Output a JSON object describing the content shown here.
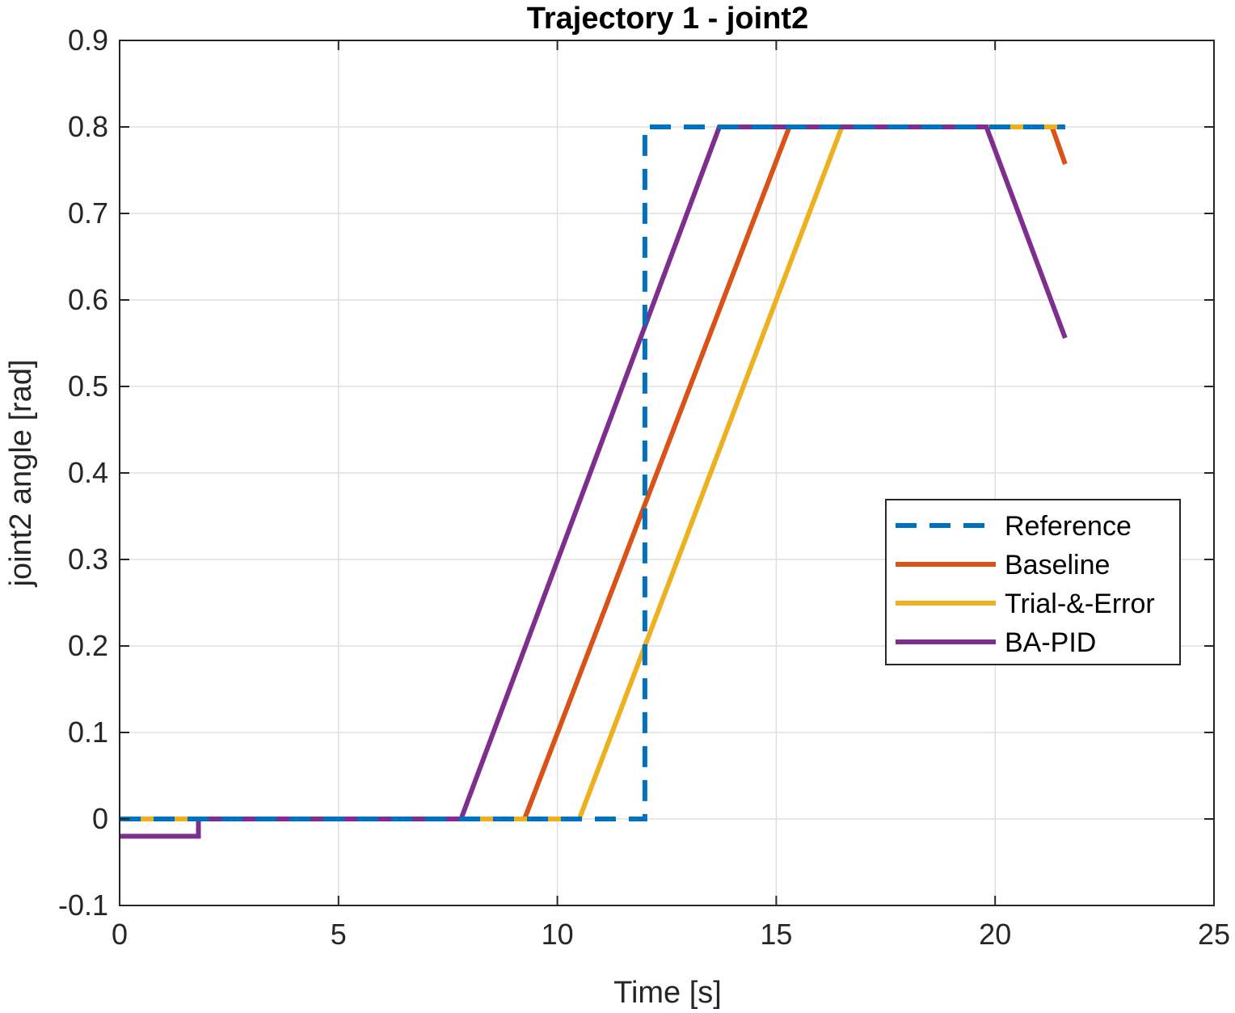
{
  "chart_data": {
    "type": "line",
    "title": "Trajectory 1 - joint2",
    "xlabel": "Time [s]",
    "ylabel": "joint2 angle [rad]",
    "xlim": [
      0,
      25
    ],
    "ylim": [
      -0.1,
      0.9
    ],
    "xticks": [
      "0",
      "5",
      "10",
      "15",
      "20",
      "25"
    ],
    "yticks": [
      "-0.1",
      "0",
      "0.1",
      "0.2",
      "0.3",
      "0.4",
      "0.5",
      "0.6",
      "0.7",
      "0.8",
      "0.9"
    ],
    "grid": true,
    "legend_position": "right",
    "series": [
      {
        "name": "Reference",
        "color": "#0072BD",
        "style": "dashed",
        "x": [
          0,
          12.0,
          12.0,
          21.6
        ],
        "y": [
          0,
          0,
          0.8,
          0.8
        ]
      },
      {
        "name": "Baseline",
        "color": "#D95319",
        "style": "solid",
        "x": [
          0,
          9.25,
          15.3,
          21.3,
          21.6
        ],
        "y": [
          0,
          0,
          0.8,
          0.8,
          0.757
        ]
      },
      {
        "name": "Trial-&-Error",
        "color": "#EDB120",
        "style": "solid",
        "x": [
          0,
          10.5,
          16.5,
          21.6
        ],
        "y": [
          0,
          0,
          0.8,
          0.8
        ]
      },
      {
        "name": "BA-PID",
        "color": "#7E2F8E",
        "style": "solid",
        "x": [
          0,
          1.8,
          1.8,
          7.8,
          13.7,
          19.8,
          21.6
        ],
        "y": [
          -0.02,
          -0.02,
          0,
          0,
          0.8,
          0.8,
          0.556
        ]
      }
    ]
  }
}
